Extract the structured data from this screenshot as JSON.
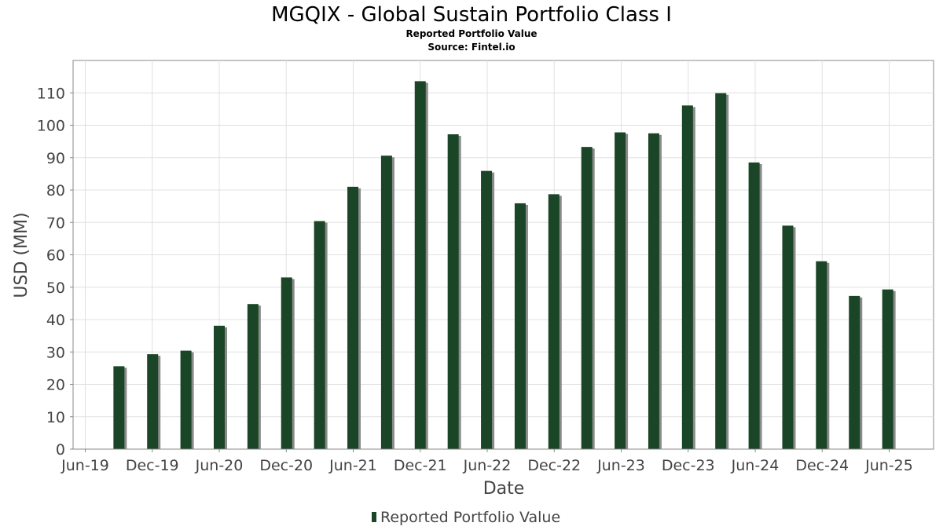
{
  "chart_data": {
    "type": "bar",
    "title": "MGQIX - Global Sustain Portfolio Class I",
    "subtitle_lines": [
      "Reported Portfolio Value",
      "Source: Fintel.io"
    ],
    "xlabel": "Date",
    "ylabel": "USD (MM)",
    "ylim": [
      0,
      120
    ],
    "yticks": [
      0,
      10,
      20,
      30,
      40,
      50,
      60,
      70,
      80,
      90,
      100,
      110
    ],
    "xticks": [
      "Jun-19",
      "Dec-19",
      "Jun-20",
      "Dec-20",
      "Jun-21",
      "Dec-21",
      "Jun-22",
      "Dec-22",
      "Jun-23",
      "Dec-23",
      "Jun-24",
      "Dec-24",
      "Jun-25"
    ],
    "x": [
      "2019-09-30",
      "2019-12-31",
      "2020-03-31",
      "2020-06-30",
      "2020-09-30",
      "2020-12-31",
      "2021-03-31",
      "2021-06-30",
      "2021-09-30",
      "2021-12-31",
      "2022-03-31",
      "2022-06-30",
      "2022-09-30",
      "2022-12-31",
      "2023-03-31",
      "2023-06-30",
      "2023-09-30",
      "2023-12-31",
      "2024-03-31",
      "2024-06-30",
      "2024-09-30",
      "2024-12-31",
      "2025-03-31",
      "2025-06-30"
    ],
    "series": [
      {
        "name": "Reported Portfolio Value",
        "color": "#1a4526",
        "values": [
          25.6,
          29.3,
          30.4,
          38.1,
          44.8,
          53.0,
          70.4,
          81.0,
          90.6,
          113.6,
          97.2,
          85.9,
          75.9,
          78.7,
          93.3,
          97.8,
          97.5,
          106.1,
          109.9,
          88.5,
          69.0,
          58.0,
          47.3,
          49.3
        ]
      }
    ],
    "grid": true,
    "legend_position": "bottom-center"
  },
  "colors": {
    "bar": "#1a4526",
    "bar_shadow": "#8a8a8a",
    "grid": "#e0e0e0",
    "plot_border": "#888888"
  }
}
